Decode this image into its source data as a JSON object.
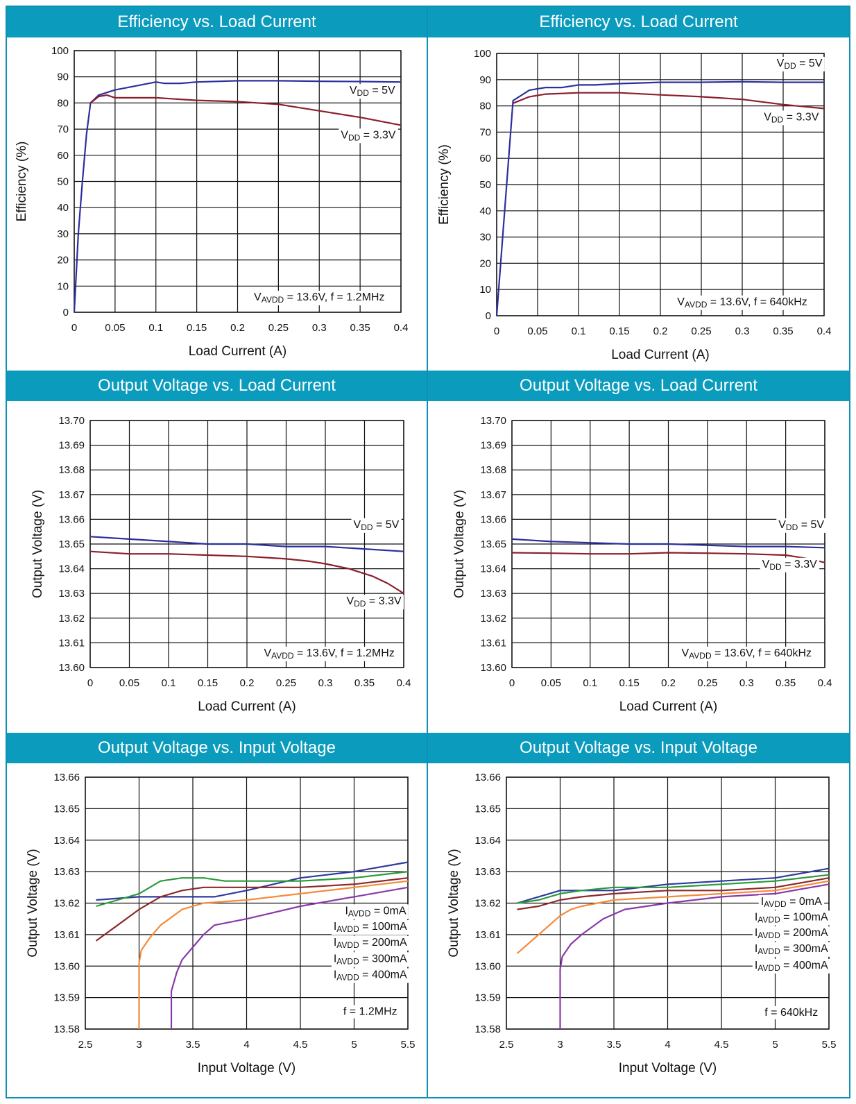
{
  "panels": [
    {
      "header": "Efficiency vs. Load Current",
      "chart_data": {
        "type": "line",
        "xlabel": "Load Current (A)",
        "ylabel": "Efficiency (%)",
        "xlim": [
          0,
          0.4
        ],
        "ylim": [
          0,
          100
        ],
        "xticks": [
          "0",
          "0.05",
          "0.1",
          "0.15",
          "0.2",
          "0.25",
          "0.3",
          "0.35",
          "0.4"
        ],
        "yticks": [
          "0",
          "10",
          "20",
          "30",
          "40",
          "50",
          "60",
          "70",
          "80",
          "90",
          "100"
        ],
        "series": [
          {
            "label": "VDD = 5V",
            "color": "#2b2f9e",
            "x": [
              0,
              0.005,
              0.01,
              0.015,
              0.02,
              0.03,
              0.05,
              0.075,
              0.1,
              0.11,
              0.13,
              0.15,
              0.2,
              0.25,
              0.3,
              0.35,
              0.4
            ],
            "y": [
              0,
              30,
              50,
              68,
              80,
              83,
              85,
              86.5,
              88,
              87.5,
              87.5,
              88,
              88.5,
              88.5,
              88.3,
              88.2,
              88
            ]
          },
          {
            "label": "VDD = 3.3V",
            "color": "#8b1f2a",
            "x": [
              0.02,
              0.03,
              0.04,
              0.05,
              0.1,
              0.15,
              0.2,
              0.25,
              0.3,
              0.35,
              0.4
            ],
            "y": [
              80,
              82.5,
              83,
              82,
              82,
              81,
              80.5,
              79.5,
              77,
              74.5,
              71.5
            ]
          }
        ],
        "annotations": [
          {
            "text": "VDD = 5V",
            "x": 0.365,
            "y": 83.5
          },
          {
            "text": "VDD = 3.3V",
            "x": 0.36,
            "y": 66.5
          },
          {
            "text": "VAVDD = 13.6V,  f = 1.2MHz",
            "x": 0.3,
            "y": 4.5
          }
        ]
      }
    },
    {
      "header": "Efficiency vs. Load Current",
      "chart_data": {
        "type": "line",
        "xlabel": "Load Current (A)",
        "ylabel": "Efficiency (%)",
        "xlim": [
          0,
          0.4
        ],
        "ylim": [
          0,
          100
        ],
        "xticks": [
          "0",
          "0.05",
          "0.1",
          "0.15",
          "0.2",
          "0.25",
          "0.3",
          "0.35",
          "0.4"
        ],
        "yticks": [
          "0",
          "10",
          "20",
          "30",
          "40",
          "50",
          "60",
          "70",
          "80",
          "90",
          "100"
        ],
        "series": [
          {
            "label": "VDD = 5V",
            "color": "#2b2f9e",
            "x": [
              0,
              0.02,
              0.04,
              0.06,
              0.08,
              0.1,
              0.12,
              0.15,
              0.2,
              0.25,
              0.3,
              0.35,
              0.4
            ],
            "y": [
              0,
              82,
              86,
              87,
              87,
              88,
              88,
              88.5,
              89,
              89,
              89.2,
              89,
              89
            ]
          },
          {
            "label": "VDD = 3.3V",
            "color": "#8b1f2a",
            "x": [
              0.02,
              0.04,
              0.06,
              0.1,
              0.15,
              0.2,
              0.25,
              0.3,
              0.35,
              0.4
            ],
            "y": [
              81,
              83.5,
              84.5,
              85,
              85,
              84.2,
              83.5,
              82.5,
              80.5,
              79
            ]
          }
        ],
        "annotations": [
          {
            "text": "VDD = 5V",
            "x": 0.37,
            "y": 95
          },
          {
            "text": "VDD = 3.3V",
            "x": 0.36,
            "y": 74.5
          },
          {
            "text": "VAVDD = 13.6V, f = 640kHz",
            "x": 0.3,
            "y": 4
          }
        ]
      }
    },
    {
      "header": "Output Voltage vs. Load Current",
      "chart_data": {
        "type": "line",
        "xlabel": "Load Current (A)",
        "ylabel": "Output Voltage (V)",
        "xlim": [
          0,
          0.4
        ],
        "ylim": [
          13.6,
          13.7
        ],
        "xticks": [
          "0",
          "0.05",
          "0.1",
          "0.15",
          "0.2",
          "0.25",
          "0.3",
          "0.35",
          "0.4"
        ],
        "yticks": [
          "13.60",
          "13.61",
          "13.62",
          "13.63",
          "13.64",
          "13.65",
          "13.66",
          "13.67",
          "13.68",
          "13.69",
          "13.70"
        ],
        "series": [
          {
            "label": "VDD = 5V",
            "color": "#2b2f9e",
            "x": [
              0,
              0.05,
              0.1,
              0.15,
              0.2,
              0.25,
              0.3,
              0.35,
              0.4
            ],
            "y": [
              13.653,
              13.652,
              13.651,
              13.65,
              13.65,
              13.649,
              13.649,
              13.648,
              13.647
            ]
          },
          {
            "label": "VDD = 3.3V",
            "color": "#8b1f2a",
            "x": [
              0,
              0.05,
              0.1,
              0.15,
              0.2,
              0.25,
              0.28,
              0.3,
              0.33,
              0.36,
              0.38,
              0.4
            ],
            "y": [
              13.647,
              13.646,
              13.646,
              13.6455,
              13.645,
              13.644,
              13.643,
              13.642,
              13.64,
              13.637,
              13.634,
              13.63
            ]
          }
        ],
        "annotations": [
          {
            "text": "VDD = 5V",
            "x": 0.365,
            "y": 13.6565
          },
          {
            "text": "VDD = 3.3V",
            "x": 0.362,
            "y": 13.6255
          },
          {
            "text": "VAVDD = 13.6V, f = 1.2MHz",
            "x": 0.305,
            "y": 13.6045
          }
        ]
      }
    },
    {
      "header": "Output Voltage vs. Load Current",
      "chart_data": {
        "type": "line",
        "xlabel": "Load Current (A)",
        "ylabel": "Output Voltage (V)",
        "xlim": [
          0,
          0.4
        ],
        "ylim": [
          13.6,
          13.7
        ],
        "xticks": [
          "0",
          "0.05",
          "0.1",
          "0.15",
          "0.2",
          "0.25",
          "0.3",
          "0.35",
          "0.4"
        ],
        "yticks": [
          "13.60",
          "13.61",
          "13.62",
          "13.63",
          "13.64",
          "13.65",
          "13.66",
          "13.67",
          "13.68",
          "13.69",
          "13.70"
        ],
        "series": [
          {
            "label": "VDD = 5V",
            "color": "#2b2f9e",
            "x": [
              0,
              0.05,
              0.1,
              0.15,
              0.2,
              0.25,
              0.3,
              0.35,
              0.4
            ],
            "y": [
              13.652,
              13.651,
              13.6505,
              13.65,
              13.65,
              13.6495,
              13.649,
              13.649,
              13.6485
            ]
          },
          {
            "label": "VDD = 3.3V",
            "color": "#8b1f2a",
            "x": [
              0,
              0.05,
              0.1,
              0.15,
              0.2,
              0.25,
              0.3,
              0.35,
              0.38,
              0.4
            ],
            "y": [
              13.6465,
              13.6463,
              13.646,
              13.646,
              13.6465,
              13.6463,
              13.646,
              13.6455,
              13.644,
              13.6425
            ]
          }
        ],
        "annotations": [
          {
            "text": "VDD = 5V",
            "x": 0.37,
            "y": 13.6565
          },
          {
            "text": "VDD = 3.3V",
            "x": 0.355,
            "y": 13.6405
          },
          {
            "text": "VAVDD = 13.6V, f = 640kHz",
            "x": 0.3,
            "y": 13.6045
          }
        ]
      }
    },
    {
      "header": "Output Voltage vs. Input Voltage",
      "chart_data": {
        "type": "line",
        "xlabel": "Input Voltage (V)",
        "ylabel": "Output Voltage (V)",
        "xlim": [
          2.5,
          5.5
        ],
        "ylim": [
          13.58,
          13.66
        ],
        "xticks": [
          "2.5",
          "3",
          "3.5",
          "4",
          "4.5",
          "5",
          "5.5"
        ],
        "yticks": [
          "13.58",
          "13.59",
          "13.60",
          "13.61",
          "13.62",
          "13.63",
          "13.64",
          "13.65",
          "13.66"
        ],
        "series": [
          {
            "label": "IAVDD = 0mA",
            "color": "#2e3a9e",
            "x": [
              2.6,
              3.0,
              3.5,
              3.7,
              4.0,
              4.5,
              5.0,
              5.5
            ],
            "y": [
              13.621,
              13.622,
              13.622,
              13.622,
              13.624,
              13.628,
              13.63,
              13.633
            ]
          },
          {
            "label": "IAVDD = 100mA",
            "color": "#2a9a3a",
            "x": [
              2.6,
              2.8,
              3.0,
              3.2,
              3.4,
              3.6,
              3.8,
              4.0,
              4.5,
              5.0,
              5.5
            ],
            "y": [
              13.619,
              13.621,
              13.623,
              13.627,
              13.628,
              13.628,
              13.627,
              13.627,
              13.627,
              13.628,
              13.63
            ]
          },
          {
            "label": "IAVDD = 200mA",
            "color": "#8b2a2a",
            "x": [
              2.6,
              2.8,
              3.0,
              3.2,
              3.4,
              3.6,
              4.0,
              4.5,
              5.0,
              5.5
            ],
            "y": [
              13.608,
              13.613,
              13.618,
              13.622,
              13.624,
              13.625,
              13.625,
              13.625,
              13.626,
              13.628
            ]
          },
          {
            "label": "IAVDD = 300mA",
            "color": "#f58a3a",
            "x": [
              3.0,
              3.0,
              3.02,
              3.1,
              3.2,
              3.4,
              3.6,
              4.0,
              4.5,
              5.0,
              5.5
            ],
            "y": [
              13.58,
              13.601,
              13.605,
              13.609,
              13.613,
              13.618,
              13.62,
              13.621,
              13.623,
              13.625,
              13.627
            ]
          },
          {
            "label": "IAVDD = 400mA",
            "color": "#8a3aa8",
            "x": [
              3.3,
              3.3,
              3.35,
              3.4,
              3.5,
              3.6,
              3.7,
              4.0,
              4.5,
              5.0,
              5.5
            ],
            "y": [
              13.58,
              13.592,
              13.598,
              13.602,
              13.606,
              13.61,
              13.613,
              13.615,
              13.619,
              13.622,
              13.625
            ]
          }
        ],
        "annotations": [
          {
            "text": "IAVDD = 0mA",
            "x": 5.2,
            "y": 13.6165
          },
          {
            "text": "IAVDD = 100mA",
            "x": 5.15,
            "y": 13.6115
          },
          {
            "text": "IAVDD = 200mA",
            "x": 5.15,
            "y": 13.6065
          },
          {
            "text": "IAVDD = 300mA",
            "x": 5.15,
            "y": 13.6013
          },
          {
            "text": "IAVDD = 400mA",
            "x": 5.15,
            "y": 13.5962
          },
          {
            "text": "f = 1.2MHz",
            "x": 5.15,
            "y": 13.5845
          }
        ]
      }
    },
    {
      "header": "Output Voltage vs. Input Voltage",
      "chart_data": {
        "type": "line",
        "xlabel": "Input Voltage (V)",
        "ylabel": "Output Voltage (V)",
        "xlim": [
          2.5,
          5.5
        ],
        "ylim": [
          13.58,
          13.66
        ],
        "xticks": [
          "2.5",
          "3",
          "3.5",
          "4",
          "4.5",
          "5",
          "5.5"
        ],
        "yticks": [
          "13.58",
          "13.59",
          "13.60",
          "13.61",
          "13.62",
          "13.63",
          "13.64",
          "13.65",
          "13.66"
        ],
        "series": [
          {
            "label": "IAVDD = 0mA",
            "color": "#2e3a9e",
            "x": [
              2.6,
              2.8,
              3.0,
              3.2,
              3.5,
              4.0,
              4.5,
              5.0,
              5.5
            ],
            "y": [
              13.62,
              13.622,
              13.624,
              13.624,
              13.624,
              13.626,
              13.627,
              13.628,
              13.631
            ]
          },
          {
            "label": "IAVDD = 100mA",
            "color": "#2a9a3a",
            "x": [
              2.6,
              2.8,
              3.0,
              3.2,
              3.5,
              4.0,
              4.5,
              5.0,
              5.5
            ],
            "y": [
              13.62,
              13.621,
              13.623,
              13.624,
              13.625,
              13.625,
              13.626,
              13.627,
              13.629
            ]
          },
          {
            "label": "IAVDD = 200mA",
            "color": "#8b2a2a",
            "x": [
              2.6,
              2.8,
              3.0,
              3.2,
              3.5,
              4.0,
              4.5,
              5.0,
              5.5
            ],
            "y": [
              13.618,
              13.619,
              13.621,
              13.622,
              13.623,
              13.624,
              13.624,
              13.625,
              13.628
            ]
          },
          {
            "label": "IAVDD = 300mA",
            "color": "#f58a3a",
            "x": [
              2.6,
              2.8,
              3.0,
              3.1,
              3.2,
              3.5,
              4.0,
              4.5,
              5.0,
              5.5
            ],
            "y": [
              13.604,
              13.61,
              13.616,
              13.618,
              13.619,
              13.621,
              13.622,
              13.623,
              13.624,
              13.627
            ]
          },
          {
            "label": "IAVDD = 400mA",
            "color": "#8a3aa8",
            "x": [
              3.0,
              3.0,
              3.02,
              3.1,
              3.2,
              3.4,
              3.6,
              4.0,
              4.5,
              5.0,
              5.5
            ],
            "y": [
              13.58,
              13.599,
              13.603,
              13.607,
              13.61,
              13.615,
              13.618,
              13.62,
              13.622,
              13.623,
              13.626
            ]
          }
        ],
        "annotations": [
          {
            "text": "IAVDD = 0mA",
            "x": 5.15,
            "y": 13.6195
          },
          {
            "text": "IAVDD = 100mA",
            "x": 5.15,
            "y": 13.6145
          },
          {
            "text": "IAVDD = 200mA",
            "x": 5.15,
            "y": 13.6095
          },
          {
            "text": "IAVDD = 300mA",
            "x": 5.15,
            "y": 13.6045
          },
          {
            "text": "IAVDD = 400mA",
            "x": 5.15,
            "y": 13.5992
          },
          {
            "text": "f = 640kHz",
            "x": 5.15,
            "y": 13.5842
          }
        ]
      }
    }
  ]
}
